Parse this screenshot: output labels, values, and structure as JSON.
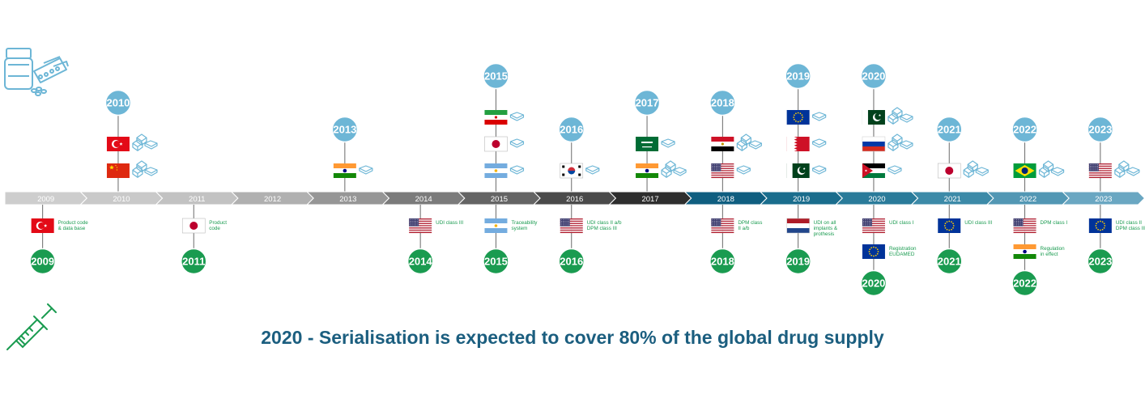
{
  "caption": "2020 - Serialisation is expected to cover 80% of the global drug supply",
  "colors": {
    "pharma_circle": "#6db6d6",
    "device_circle": "#1a9b50",
    "device_text": "#1a9b50",
    "caption": "#1b5e7f",
    "icon_blue": "#6db6d6",
    "icon_green": "#1a9b50"
  },
  "header_icons": {
    "pharma": "medicine-bottle-blister-icon",
    "device": "syringe-icon"
  },
  "timeline": [
    {
      "year": "2009",
      "color": "#cdcdcd",
      "text_color": "#ffffff"
    },
    {
      "year": "2010",
      "color": "#c9c9c9",
      "text_color": "#ffffff"
    },
    {
      "year": "2011",
      "color": "#c2c2c2",
      "text_color": "#ffffff"
    },
    {
      "year": "2012",
      "color": "#b0b0b0",
      "text_color": "#ffffff"
    },
    {
      "year": "2013",
      "color": "#969696",
      "text_color": "#ffffff"
    },
    {
      "year": "2014",
      "color": "#7b7b7b",
      "text_color": "#ffffff"
    },
    {
      "year": "2015",
      "color": "#646464",
      "text_color": "#ffffff"
    },
    {
      "year": "2016",
      "color": "#4a4a4a",
      "text_color": "#ffffff"
    },
    {
      "year": "2017",
      "color": "#2e2e2e",
      "text_color": "#ffffff"
    },
    {
      "year": "2018",
      "color": "#0f5e80",
      "text_color": "#ffffff"
    },
    {
      "year": "2019",
      "color": "#1a6d8d",
      "text_color": "#ffffff"
    },
    {
      "year": "2020",
      "color": "#2a7b9a",
      "text_color": "#ffffff"
    },
    {
      "year": "2021",
      "color": "#3c8aa8",
      "text_color": "#ffffff"
    },
    {
      "year": "2022",
      "color": "#5297b4",
      "text_color": "#ffffff"
    },
    {
      "year": "2023",
      "color": "#6aa7c2",
      "text_color": "#ffffff"
    }
  ],
  "pharma_events": [
    {
      "year": "2010",
      "flags": [
        {
          "country": "turkey",
          "icon": "boxes-icon"
        },
        {
          "country": "china",
          "icon": "boxes-icon"
        }
      ]
    },
    {
      "year": "2013",
      "flags": [
        {
          "country": "india",
          "icon": "box-icon"
        }
      ]
    },
    {
      "year": "2015",
      "flags": [
        {
          "country": "iran",
          "icon": "box-icon"
        },
        {
          "country": "japan",
          "icon": "box-icon"
        },
        {
          "country": "argentina",
          "icon": "box-icon"
        }
      ]
    },
    {
      "year": "2016",
      "flags": [
        {
          "country": "south-korea",
          "icon": "box-icon"
        }
      ]
    },
    {
      "year": "2017",
      "flags": [
        {
          "country": "saudi-arabia",
          "icon": "box-icon"
        },
        {
          "country": "india",
          "icon": "boxes-icon"
        }
      ]
    },
    {
      "year": "2018",
      "flags": [
        {
          "country": "egypt",
          "icon": "boxes-icon"
        },
        {
          "country": "usa",
          "icon": "box-icon"
        }
      ]
    },
    {
      "year": "2019",
      "flags": [
        {
          "country": "eu",
          "icon": "box-icon"
        },
        {
          "country": "bahrain",
          "icon": "box-icon"
        },
        {
          "country": "pakistan",
          "icon": "box-icon"
        }
      ]
    },
    {
      "year": "2020",
      "flags": [
        {
          "country": "pakistan",
          "icon": "boxes-icon"
        },
        {
          "country": "russia",
          "icon": "boxes-icon"
        },
        {
          "country": "jordan",
          "icon": "box-icon"
        }
      ]
    },
    {
      "year": "2021",
      "flags": [
        {
          "country": "japan",
          "icon": "boxes-icon"
        }
      ]
    },
    {
      "year": "2022",
      "flags": [
        {
          "country": "brazil",
          "icon": "boxes-icon"
        }
      ]
    },
    {
      "year": "2023",
      "flags": [
        {
          "country": "usa",
          "icon": "boxes-icon"
        }
      ]
    }
  ],
  "device_events": [
    {
      "year": "2009",
      "flags": [
        {
          "country": "turkey",
          "label": [
            "Product code",
            "& data base"
          ]
        }
      ]
    },
    {
      "year": "2011",
      "flags": [
        {
          "country": "japan",
          "label": [
            "Product",
            "code"
          ]
        }
      ]
    },
    {
      "year": "2014",
      "flags": [
        {
          "country": "usa",
          "label": [
            "UDI class III"
          ]
        }
      ]
    },
    {
      "year": "2015",
      "flags": [
        {
          "country": "argentina",
          "label": [
            "Traceability",
            "system"
          ]
        }
      ]
    },
    {
      "year": "2016",
      "flags": [
        {
          "country": "usa",
          "label": [
            "UDI class II a/b",
            "DPM class III"
          ]
        }
      ]
    },
    {
      "year": "2018",
      "flags": [
        {
          "country": "usa",
          "label": [
            "DPM class",
            "II a/b"
          ]
        }
      ]
    },
    {
      "year": "2019",
      "flags": [
        {
          "country": "netherlands",
          "label": [
            "UDI on all",
            "implants &",
            "prothesis"
          ]
        }
      ]
    },
    {
      "year": "2020",
      "flags": [
        {
          "country": "usa",
          "label": [
            "UDI class I"
          ]
        },
        {
          "country": "eu",
          "label": [
            "Registration",
            "EUDAMED"
          ]
        }
      ]
    },
    {
      "year": "2021",
      "flags": [
        {
          "country": "eu",
          "label": [
            "UDI class III"
          ]
        }
      ]
    },
    {
      "year": "2022",
      "flags": [
        {
          "country": "usa",
          "label": [
            "DPM class I"
          ]
        },
        {
          "country": "india",
          "label": [
            "Regulation",
            "in effect"
          ]
        }
      ]
    },
    {
      "year": "2023",
      "flags": [
        {
          "country": "eu",
          "label": [
            "UDI class II",
            "DPM class III"
          ]
        }
      ]
    }
  ]
}
